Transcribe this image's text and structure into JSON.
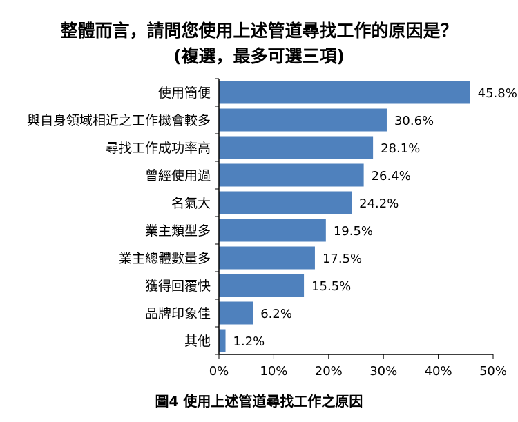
{
  "title_line1": "整體而言，請問您使用上述管道尋找工作的原因是？",
  "title_line2": "(複選，最多可選三項)",
  "caption": "圖4 使用上述管道尋找工作之原因",
  "chart_data": {
    "type": "bar",
    "orientation": "horizontal",
    "title": "整體而言，請問您使用上述管道尋找工作的原因是？(複選，最多可選三項)",
    "categories": [
      "使用簡便",
      "與自身領域相近之工作機會較多",
      "尋找工作成功率高",
      "曾經使用過",
      "名氣大",
      "業主類型多",
      "業主總體數量多",
      "獲得回覆快",
      "品牌印象佳",
      "其他"
    ],
    "values": [
      45.8,
      30.6,
      28.1,
      26.4,
      24.2,
      19.5,
      17.5,
      15.5,
      6.2,
      1.2
    ],
    "value_labels": [
      "45.8%",
      "30.6%",
      "28.1%",
      "26.4%",
      "24.2%",
      "19.5%",
      "17.5%",
      "15.5%",
      "6.2%",
      "1.2%"
    ],
    "x_ticks": [
      "0%",
      "10%",
      "20%",
      "30%",
      "40%",
      "50%"
    ],
    "xlim": [
      0,
      50
    ],
    "grid": false,
    "bar_color": "#4F81BD"
  }
}
